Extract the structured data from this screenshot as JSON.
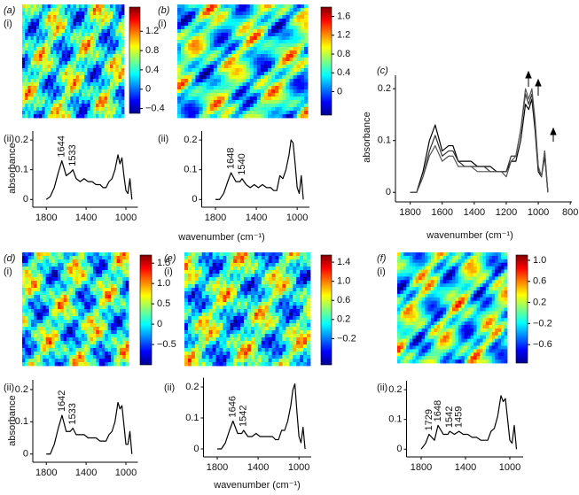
{
  "chart_data": [
    {
      "type": "heatmap",
      "panel": "(a)",
      "sub": "(i)",
      "clim": [
        -0.5,
        1.7
      ],
      "cticks": [
        1.2,
        0.8,
        0.4,
        0,
        {
          "value": -0.4,
          "label": "−0.4"
        }
      ]
    },
    {
      "type": "line",
      "sub": "(ii)",
      "ylabel": "absorbance",
      "x": [
        1800,
        1760,
        1720,
        1680,
        1644,
        1600,
        1560,
        1533,
        1500,
        1460,
        1420,
        1380,
        1340,
        1300,
        1260,
        1230,
        1200,
        1170,
        1140,
        1110,
        1080,
        1060,
        1040,
        1020,
        1000,
        980,
        960,
        940
      ],
      "values": [
        0.0,
        0.01,
        0.04,
        0.09,
        0.13,
        0.08,
        0.09,
        0.1,
        0.07,
        0.06,
        0.07,
        0.06,
        0.06,
        0.05,
        0.05,
        0.04,
        0.04,
        0.06,
        0.07,
        0.1,
        0.15,
        0.12,
        0.14,
        0.08,
        0.03,
        0.02,
        0.07,
        0.0
      ],
      "color": "#000",
      "xlim": [
        1900,
        880
      ],
      "ylim": [
        -0.02,
        0.23
      ],
      "xticks": [
        1800,
        1400,
        1000
      ],
      "yticks": [
        0,
        0.1,
        0.2
      ],
      "annotations": [
        {
          "text": "1644",
          "x": 1644
        },
        {
          "text": "1533",
          "x": 1533
        }
      ]
    },
    {
      "type": "heatmap",
      "panel": "(b)",
      "sub": "(i)",
      "clim": [
        -0.5,
        1.8
      ],
      "cticks": [
        1.6,
        1.2,
        0.8,
        0.4,
        0
      ]
    },
    {
      "type": "line",
      "sub": "(ii)",
      "xlabel": "wavenumber (cm⁻¹)",
      "x": [
        1800,
        1760,
        1720,
        1680,
        1648,
        1600,
        1560,
        1540,
        1500,
        1460,
        1420,
        1380,
        1340,
        1300,
        1260,
        1230,
        1200,
        1170,
        1140,
        1110,
        1080,
        1060,
        1040,
        1020,
        1000,
        980,
        960,
        940
      ],
      "values": [
        0.0,
        0.0,
        0.02,
        0.06,
        0.09,
        0.06,
        0.06,
        0.07,
        0.05,
        0.04,
        0.05,
        0.04,
        0.05,
        0.04,
        0.04,
        0.03,
        0.03,
        0.08,
        0.07,
        0.1,
        0.15,
        0.2,
        0.19,
        0.12,
        0.04,
        0.02,
        0.08,
        0.0
      ],
      "color": "#000",
      "xlim": [
        1900,
        880
      ],
      "ylim": [
        -0.02,
        0.23
      ],
      "xticks": [
        1800,
        1400,
        1000
      ],
      "yticks": [
        0,
        0.1,
        0.2
      ],
      "annotations": [
        {
          "text": "1648",
          "x": 1648
        },
        {
          "text": "1540",
          "x": 1540
        }
      ]
    },
    {
      "type": "line",
      "panel": "(c)",
      "xlabel": "wavenumber (cm⁻¹)",
      "ylabel": "absorbance",
      "x": [
        1800,
        1760,
        1720,
        1680,
        1644,
        1600,
        1560,
        1533,
        1500,
        1460,
        1420,
        1380,
        1340,
        1300,
        1260,
        1230,
        1200,
        1170,
        1140,
        1110,
        1080,
        1060,
        1040,
        1020,
        1000,
        980,
        960,
        940
      ],
      "series": [
        {
          "color": "#000",
          "values": [
            0.0,
            0.0,
            0.04,
            0.1,
            0.13,
            0.08,
            0.09,
            0.09,
            0.06,
            0.06,
            0.06,
            0.05,
            0.05,
            0.05,
            0.04,
            0.04,
            0.04,
            0.06,
            0.06,
            0.1,
            0.17,
            0.16,
            0.18,
            0.12,
            0.04,
            0.03,
            0.07,
            0.0
          ]
        },
        {
          "color": "#333",
          "values": [
            0.0,
            0.0,
            0.03,
            0.08,
            0.11,
            0.07,
            0.08,
            0.08,
            0.06,
            0.05,
            0.05,
            0.05,
            0.05,
            0.04,
            0.04,
            0.04,
            0.04,
            0.07,
            0.07,
            0.12,
            0.19,
            0.17,
            0.19,
            0.13,
            0.05,
            0.03,
            0.08,
            0.0
          ]
        },
        {
          "color": "#555",
          "values": [
            0.0,
            0.0,
            0.03,
            0.07,
            0.09,
            0.06,
            0.07,
            0.07,
            0.05,
            0.05,
            0.05,
            0.04,
            0.04,
            0.04,
            0.04,
            0.04,
            0.03,
            0.06,
            0.07,
            0.12,
            0.2,
            0.18,
            0.2,
            0.14,
            0.05,
            0.03,
            0.08,
            0.0
          ]
        }
      ],
      "xlim": [
        1870,
        790
      ],
      "ylim": [
        -0.015,
        0.226
      ],
      "xticks": [
        1800,
        1600,
        1400,
        1200,
        1000,
        800
      ],
      "yticks": [
        0,
        0.1,
        0.2
      ]
    },
    {
      "type": "heatmap",
      "panel": "(d)",
      "sub": "(i)",
      "clim": [
        -1.0,
        1.7
      ],
      "cticks": [
        1.5,
        {
          "value": 1.0,
          "label": "1.0"
        },
        0.5,
        0,
        {
          "value": -0.5,
          "label": "−0.5"
        }
      ]
    },
    {
      "type": "line",
      "sub": "(ii)",
      "ylabel": "absorbance",
      "x": [
        1800,
        1760,
        1720,
        1680,
        1642,
        1600,
        1560,
        1533,
        1500,
        1460,
        1420,
        1380,
        1340,
        1300,
        1260,
        1230,
        1200,
        1170,
        1140,
        1110,
        1080,
        1060,
        1040,
        1020,
        1000,
        980,
        960,
        940
      ],
      "values": [
        0.0,
        0.0,
        0.03,
        0.08,
        0.12,
        0.07,
        0.07,
        0.08,
        0.06,
        0.06,
        0.06,
        0.05,
        0.05,
        0.05,
        0.04,
        0.04,
        0.04,
        0.06,
        0.07,
        0.1,
        0.16,
        0.14,
        0.15,
        0.09,
        0.03,
        0.03,
        0.07,
        0.0
      ],
      "color": "#000",
      "xlim": [
        1900,
        880
      ],
      "ylim": [
        -0.02,
        0.23
      ],
      "xticks": [
        1800,
        1400,
        1000
      ],
      "yticks": [
        0,
        0.1,
        0.2
      ],
      "annotations": [
        {
          "text": "1642",
          "x": 1642
        },
        {
          "text": "1533",
          "x": 1533
        }
      ]
    },
    {
      "type": "heatmap",
      "panel": "(e)",
      "sub": "(i)",
      "clim": [
        -0.75,
        1.55
      ],
      "cticks": [
        1.4,
        {
          "value": 1.0,
          "label": "1.0"
        },
        0.6,
        0.2,
        {
          "value": -0.2,
          "label": "−0.2"
        }
      ]
    },
    {
      "type": "line",
      "sub": "(ii)",
      "xlabel": "wavenumber (cm⁻¹)",
      "x": [
        1800,
        1760,
        1720,
        1680,
        1646,
        1600,
        1560,
        1542,
        1500,
        1460,
        1420,
        1380,
        1340,
        1300,
        1260,
        1230,
        1200,
        1170,
        1140,
        1110,
        1080,
        1060,
        1040,
        1020,
        1000,
        980,
        960,
        940
      ],
      "values": [
        0.0,
        0.0,
        0.02,
        0.06,
        0.09,
        0.05,
        0.05,
        0.06,
        0.04,
        0.04,
        0.05,
        0.04,
        0.04,
        0.04,
        0.04,
        0.03,
        0.03,
        0.06,
        0.06,
        0.09,
        0.14,
        0.19,
        0.21,
        0.12,
        0.04,
        0.02,
        0.07,
        0.0
      ],
      "color": "#000",
      "xlim": [
        1900,
        880
      ],
      "ylim": [
        -0.02,
        0.23
      ],
      "xticks": [
        1800,
        1400,
        1000
      ],
      "yticks": [
        0,
        0.1,
        0.2
      ],
      "annotations": [
        {
          "text": "1646",
          "x": 1646
        },
        {
          "text": "1542",
          "x": 1542
        }
      ]
    },
    {
      "type": "heatmap",
      "panel": "(f)",
      "sub": "(i)",
      "clim": [
        -0.95,
        1.1
      ],
      "cticks": [
        {
          "value": 1.0,
          "label": "1.0"
        },
        0.6,
        0.2,
        {
          "value": -0.2,
          "label": "−0.2"
        },
        {
          "value": -0.6,
          "label": "−0.6"
        }
      ]
    },
    {
      "type": "line",
      "sub": "(ii)",
      "x": [
        1800,
        1760,
        1729,
        1680,
        1648,
        1600,
        1560,
        1542,
        1500,
        1459,
        1420,
        1380,
        1340,
        1300,
        1260,
        1230,
        1200,
        1170,
        1140,
        1110,
        1080,
        1060,
        1040,
        1020,
        1000,
        980,
        960,
        940
      ],
      "values": [
        0.0,
        0.02,
        0.05,
        0.03,
        0.08,
        0.05,
        0.05,
        0.06,
        0.05,
        0.06,
        0.05,
        0.05,
        0.04,
        0.04,
        0.03,
        0.03,
        0.03,
        0.06,
        0.07,
        0.11,
        0.18,
        0.16,
        0.17,
        0.1,
        0.03,
        0.02,
        0.08,
        0.0
      ],
      "color": "#000",
      "xlim": [
        1900,
        880
      ],
      "ylim": [
        -0.02,
        0.23
      ],
      "xticks": [
        1800,
        1400,
        1000
      ],
      "yticks": [
        0,
        0.1,
        0.2
      ],
      "annotations": [
        {
          "text": "1729",
          "x": 1729
        },
        {
          "text": "1648",
          "x": 1648
        },
        {
          "text": "1542",
          "x": 1542
        },
        {
          "text": "1459",
          "x": 1459
        }
      ]
    }
  ]
}
